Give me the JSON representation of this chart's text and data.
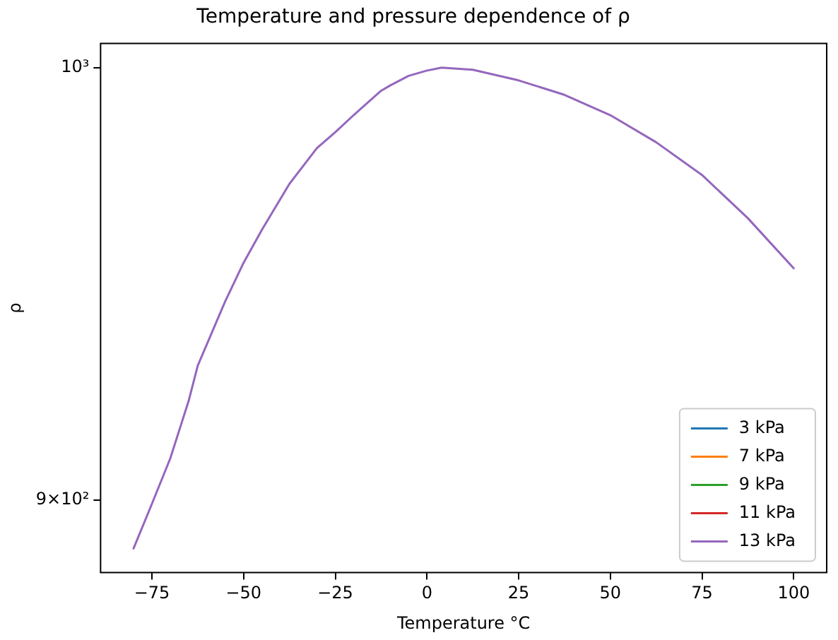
{
  "chart_data": {
    "type": "line",
    "title": "Temperature and pressure dependence of ρ",
    "xlabel": "Temperature °C",
    "ylabel": "ρ",
    "x": [
      -80,
      -75,
      -70,
      -65,
      -62.5,
      -55,
      -50,
      -45,
      -37.5,
      -30,
      -25,
      -20,
      -12.5,
      -10,
      -5,
      0,
      4,
      12.5,
      25,
      37.5,
      50,
      62.5,
      75,
      87.5,
      100
    ],
    "series": [
      {
        "name": "3 kPa",
        "color": "#1f77b4",
        "values": [
          null,
          null,
          null,
          null,
          null,
          null,
          null,
          null,
          null,
          null,
          null,
          null,
          null,
          null,
          null,
          null,
          null,
          null,
          null,
          null,
          null,
          null,
          null,
          null,
          null
        ]
      },
      {
        "name": "7 kPa",
        "color": "#ff7f0e",
        "values": [
          null,
          null,
          null,
          null,
          null,
          null,
          null,
          null,
          null,
          null,
          null,
          null,
          null,
          null,
          null,
          null,
          null,
          null,
          null,
          null,
          null,
          null,
          null,
          null,
          null
        ]
      },
      {
        "name": "9 kPa",
        "color": "#2ca02c",
        "values": [
          null,
          null,
          null,
          null,
          null,
          null,
          null,
          null,
          null,
          null,
          null,
          null,
          null,
          null,
          null,
          null,
          null,
          null,
          null,
          null,
          null,
          null,
          null,
          null,
          null
        ]
      },
      {
        "name": "11 kPa",
        "color": "#d62728",
        "values": [
          null,
          null,
          null,
          null,
          null,
          null,
          null,
          null,
          null,
          null,
          null,
          null,
          null,
          null,
          null,
          null,
          null,
          null,
          null,
          null,
          null,
          null,
          null,
          null,
          null
        ]
      },
      {
        "name": "13 kPa",
        "color": "#9467bd",
        "values": [
          889.5,
          899.2,
          909.2,
          922.0,
          930.0,
          944.7,
          953.6,
          961.3,
          972.1,
          980.6,
          984.4,
          988.5,
          994.4,
          995.7,
          998.0,
          999.3,
          1000,
          999.5,
          996.9,
          993.4,
          988.5,
          982.0,
          974.2,
          964.0,
          952.3
        ]
      }
    ],
    "xlim": [
      -89,
      109
    ],
    "xticks": [
      {
        "value": -75,
        "label": "−75"
      },
      {
        "value": -50,
        "label": "−50"
      },
      {
        "value": -25,
        "label": "−25"
      },
      0,
      25,
      50,
      75,
      100
    ],
    "ylim": [
      884.3,
      1005.9
    ],
    "yticks": [
      {
        "value": 900,
        "label": "9×10²"
      },
      {
        "value": 1000,
        "label": "10³"
      }
    ],
    "log": "y",
    "grid": false,
    "legend": "bottom right",
    "marker": "none",
    "line_style": "solid"
  }
}
